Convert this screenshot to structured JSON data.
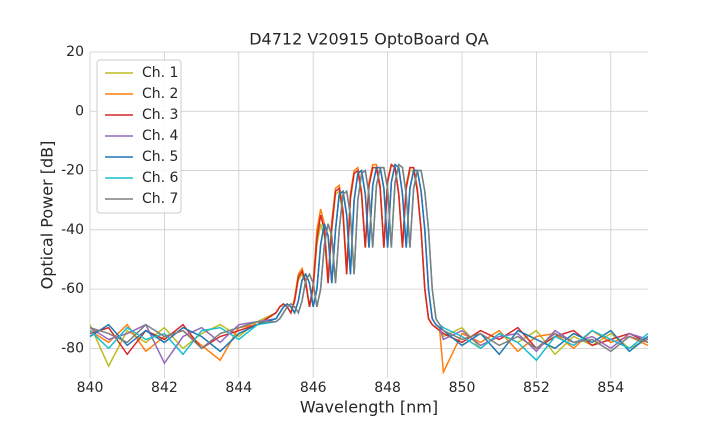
{
  "chart_data": {
    "type": "line",
    "title": "D4712 V20915 OptoBoard QA",
    "xlabel": "Wavelength [nm]",
    "ylabel": "Optical Power [dB]",
    "xlim": [
      840,
      855
    ],
    "ylim": [
      -90,
      20
    ],
    "xticks": [
      840,
      842,
      844,
      846,
      848,
      850,
      852,
      854
    ],
    "yticks": [
      -80,
      -60,
      -40,
      -20,
      0,
      20
    ],
    "grid": true,
    "legend": "upper left",
    "x": [
      840,
      840.5,
      841,
      841.5,
      842,
      842.5,
      843,
      843.5,
      844,
      844.5,
      845.0,
      845.1,
      845.2,
      845.3,
      845.4,
      845.5,
      845.6,
      845.7,
      845.8,
      845.9,
      846.0,
      846.1,
      846.2,
      846.3,
      846.4,
      846.5,
      846.6,
      846.7,
      846.8,
      846.9,
      847.0,
      847.1,
      847.2,
      847.3,
      847.4,
      847.5,
      847.6,
      847.7,
      847.8,
      847.9,
      848.0,
      848.1,
      848.2,
      848.3,
      848.4,
      848.5,
      848.6,
      848.7,
      848.8,
      848.9,
      849.0,
      849.1,
      849.2,
      849.3,
      849.4,
      849.5,
      850,
      850.5,
      851,
      851.5,
      852,
      852.5,
      853,
      853.5,
      854,
      854.5,
      855
    ],
    "series": [
      {
        "name": "Ch. 1",
        "color": "#bcbd22",
        "values": [
          -72,
          -86,
          -74,
          -78,
          -73,
          -80,
          -75,
          -72,
          -76,
          -71,
          -68,
          -66,
          -65,
          -66,
          -68,
          -64,
          -57,
          -55,
          -58,
          -66,
          -60,
          -45,
          -38,
          -42,
          -58,
          -40,
          -28,
          -27,
          -35,
          -55,
          -30,
          -21,
          -20,
          -28,
          -46,
          -25,
          -19,
          -19,
          -26,
          -46,
          -24,
          -18,
          -19,
          -28,
          -46,
          -26,
          -20,
          -20,
          -27,
          -40,
          -60,
          -70,
          -72,
          -73,
          -74,
          -76,
          -73,
          -80,
          -75,
          -78,
          -74,
          -82,
          -76,
          -79,
          -75,
          -80,
          -77
        ]
      },
      {
        "name": "Ch. 2",
        "color": "#ff7f0e",
        "values": [
          -74,
          -78,
          -72,
          -81,
          -76,
          -74,
          -79,
          -84,
          -73,
          -72,
          -68,
          -66,
          -65,
          -66,
          -68,
          -63,
          -55,
          -53,
          -57,
          -66,
          -58,
          -40,
          -33,
          -38,
          -57,
          -37,
          -26,
          -25,
          -33,
          -54,
          -28,
          -20,
          -19,
          -27,
          -46,
          -24,
          -18,
          -18,
          -25,
          -46,
          -23,
          -18,
          -19,
          -28,
          -46,
          -25,
          -19,
          -19,
          -26,
          -40,
          -60,
          -70,
          -72,
          -73,
          -74,
          -88,
          -75,
          -78,
          -74,
          -81,
          -76,
          -75,
          -80,
          -74,
          -78,
          -76,
          -79
        ]
      },
      {
        "name": "Ch. 3",
        "color": "#d62728",
        "values": [
          -75,
          -73,
          -82,
          -74,
          -77,
          -72,
          -80,
          -76,
          -74,
          -72,
          -68,
          -66,
          -65,
          -66,
          -68,
          -64,
          -56,
          -54,
          -58,
          -66,
          -59,
          -43,
          -35,
          -40,
          -58,
          -39,
          -27,
          -26,
          -34,
          -55,
          -29,
          -21,
          -20,
          -28,
          -46,
          -25,
          -19,
          -19,
          -26,
          -46,
          -24,
          -18,
          -19,
          -28,
          -46,
          -26,
          -19,
          -19,
          -27,
          -40,
          -60,
          -70,
          -72,
          -73,
          -74,
          -75,
          -78,
          -74,
          -77,
          -73,
          -80,
          -76,
          -74,
          -79,
          -77,
          -75,
          -78
        ]
      },
      {
        "name": "Ch. 4",
        "color": "#9467bd",
        "values": [
          -73,
          -77,
          -75,
          -72,
          -85,
          -76,
          -73,
          -78,
          -72,
          -71,
          -70,
          -68,
          -66,
          -65,
          -66,
          -68,
          -64,
          -57,
          -55,
          -58,
          -66,
          -60,
          -45,
          -38,
          -42,
          -58,
          -40,
          -28,
          -27,
          -35,
          -55,
          -30,
          -21,
          -20,
          -28,
          -46,
          -25,
          -19,
          -19,
          -26,
          -46,
          -24,
          -18,
          -19,
          -28,
          -46,
          -26,
          -20,
          -20,
          -27,
          -40,
          -60,
          -70,
          -72,
          -73,
          -77,
          -74,
          -79,
          -76,
          -75,
          -81,
          -74,
          -78,
          -76,
          -80,
          -75,
          -77
        ]
      },
      {
        "name": "Ch. 5",
        "color": "#1f77b4",
        "values": [
          -76,
          -72,
          -79,
          -74,
          -78,
          -73,
          -76,
          -81,
          -75,
          -72,
          -70,
          -68,
          -66,
          -65,
          -66,
          -68,
          -64,
          -57,
          -55,
          -58,
          -66,
          -60,
          -45,
          -38,
          -42,
          -58,
          -40,
          -28,
          -27,
          -35,
          -55,
          -30,
          -21,
          -20,
          -28,
          -46,
          -25,
          -19,
          -19,
          -26,
          -46,
          -24,
          -18,
          -19,
          -28,
          -46,
          -26,
          -20,
          -20,
          -27,
          -40,
          -60,
          -70,
          -72,
          -73,
          -74,
          -79,
          -75,
          -82,
          -74,
          -77,
          -80,
          -75,
          -78,
          -74,
          -81,
          -76
        ]
      },
      {
        "name": "Ch. 6",
        "color": "#17becf",
        "values": [
          -74,
          -80,
          -73,
          -77,
          -75,
          -82,
          -74,
          -73,
          -77,
          -72,
          -71,
          -70,
          -68,
          -66,
          -65,
          -66,
          -68,
          -64,
          -57,
          -55,
          -58,
          -66,
          -60,
          -45,
          -38,
          -42,
          -58,
          -40,
          -28,
          -27,
          -35,
          -55,
          -30,
          -21,
          -20,
          -28,
          -46,
          -25,
          -19,
          -19,
          -26,
          -46,
          -24,
          -18,
          -19,
          -28,
          -46,
          -26,
          -20,
          -20,
          -27,
          -40,
          -60,
          -70,
          -72,
          -73,
          -76,
          -80,
          -75,
          -78,
          -84,
          -76,
          -79,
          -74,
          -77,
          -80,
          -75
        ]
      },
      {
        "name": "Ch. 7",
        "color": "#7f7f7f",
        "values": [
          -73,
          -75,
          -78,
          -72,
          -76,
          -74,
          -80,
          -75,
          -73,
          -71,
          -71,
          -70,
          -68,
          -66,
          -65,
          -66,
          -68,
          -64,
          -57,
          -55,
          -58,
          -66,
          -60,
          -45,
          -38,
          -42,
          -58,
          -40,
          -28,
          -27,
          -35,
          -55,
          -30,
          -21,
          -20,
          -28,
          -46,
          -25,
          -19,
          -19,
          -26,
          -46,
          -24,
          -18,
          -19,
          -28,
          -46,
          -26,
          -20,
          -20,
          -27,
          -40,
          -60,
          -70,
          -72,
          -74,
          -77,
          -75,
          -79,
          -76,
          -80,
          -75,
          -78,
          -77,
          -81,
          -76,
          -78
        ]
      }
    ]
  }
}
